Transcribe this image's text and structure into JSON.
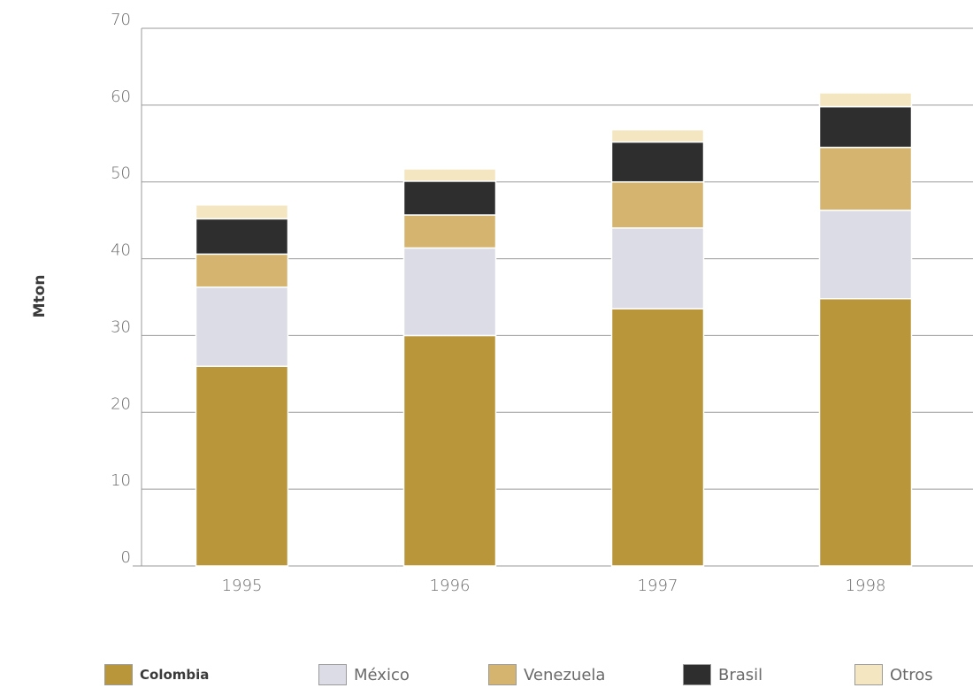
{
  "chart_data": {
    "type": "bar",
    "stacked": true,
    "categories": [
      "1995",
      "1996",
      "1997",
      "1998"
    ],
    "series": [
      {
        "name": "Colombia",
        "color": "#b9963a",
        "values": [
          26.0,
          30.0,
          33.5,
          34.8
        ]
      },
      {
        "name": "México",
        "color": "#dcdce6",
        "values": [
          10.3,
          11.4,
          10.5,
          11.5
        ]
      },
      {
        "name": "Venezuela",
        "color": "#d4b46e",
        "values": [
          4.3,
          4.3,
          6.0,
          8.2
        ]
      },
      {
        "name": "Brasil",
        "color": "#2e2e2e",
        "values": [
          4.6,
          4.4,
          5.2,
          5.3
        ]
      },
      {
        "name": "Otros",
        "color": "#f3e6c0",
        "values": [
          1.8,
          1.6,
          1.6,
          1.8
        ]
      }
    ],
    "title": "",
    "xlabel": "",
    "ylabel": "Mton",
    "ylim": [
      0,
      70
    ],
    "yticks": [
      0,
      10,
      20,
      30,
      40,
      50,
      60,
      70
    ],
    "grid": true,
    "legend_position": "bottom"
  }
}
